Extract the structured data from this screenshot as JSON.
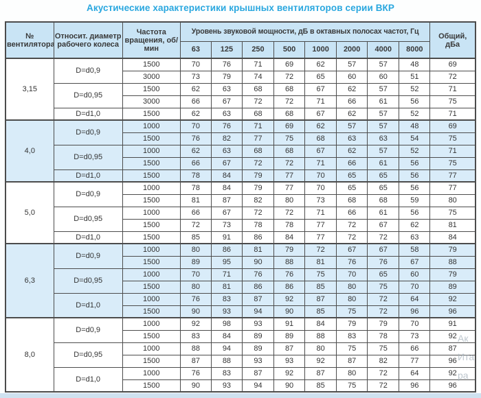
{
  "title": "Акустические характеристики крышных вентиляторов серии ВКР",
  "colors": {
    "accent": "#29a7df",
    "header_bg": "#c9e4f5",
    "shaded_row_bg": "#d9ecf9",
    "white_row_bg": "#ffffff",
    "border": "#4b4b4b",
    "page_bottom_strip": "#cfe2f0",
    "text": "#333333"
  },
  "table": {
    "headers": {
      "fan_no": "№ вентилятора",
      "rel_diameter": "Относит. диаметр рабочего колеса",
      "speed": "Частота вращения, об/мин",
      "spl_group": "Уровень звуковой мощности, дБ в октавных полосах частот, Гц",
      "octaves": [
        "63",
        "125",
        "250",
        "500",
        "1000",
        "2000",
        "4000",
        "8000"
      ],
      "total": "Общий, дБа"
    },
    "groups": [
      {
        "fan": "3,15",
        "shaded": false,
        "diameters": [
          {
            "label": "D=d0,9",
            "rows": [
              {
                "speed": "1500",
                "values": [
                  70,
                  76,
                  71,
                  69,
                  62,
                  57,
                  57,
                  48
                ],
                "total": 69
              },
              {
                "speed": "3000",
                "values": [
                  73,
                  79,
                  74,
                  72,
                  65,
                  60,
                  60,
                  51
                ],
                "total": 72
              }
            ]
          },
          {
            "label": "D=d0,95",
            "rows": [
              {
                "speed": "1500",
                "values": [
                  62,
                  63,
                  68,
                  68,
                  67,
                  62,
                  57,
                  52
                ],
                "total": 71
              },
              {
                "speed": "3000",
                "values": [
                  66,
                  67,
                  72,
                  72,
                  71,
                  66,
                  61,
                  56
                ],
                "total": 75
              }
            ]
          },
          {
            "label": "D=d1,0",
            "rows": [
              {
                "speed": "1500",
                "values": [
                  62,
                  63,
                  68,
                  68,
                  67,
                  62,
                  57,
                  52
                ],
                "total": 71
              }
            ]
          }
        ]
      },
      {
        "fan": "4,0",
        "shaded": true,
        "diameters": [
          {
            "label": "D=d0,9",
            "rows": [
              {
                "speed": "1000",
                "values": [
                  70,
                  76,
                  71,
                  69,
                  62,
                  57,
                  57,
                  48
                ],
                "total": 69
              },
              {
                "speed": "1500",
                "values": [
                  76,
                  82,
                  77,
                  75,
                  68,
                  63,
                  63,
                  54
                ],
                "total": 75
              }
            ]
          },
          {
            "label": "D=d0,95",
            "rows": [
              {
                "speed": "1000",
                "values": [
                  62,
                  63,
                  68,
                  68,
                  67,
                  62,
                  57,
                  52
                ],
                "total": 71
              },
              {
                "speed": "1500",
                "values": [
                  66,
                  67,
                  72,
                  72,
                  71,
                  66,
                  61,
                  56
                ],
                "total": 75
              }
            ]
          },
          {
            "label": "D=d1,0",
            "rows": [
              {
                "speed": "1500",
                "values": [
                  78,
                  84,
                  79,
                  77,
                  70,
                  65,
                  65,
                  56
                ],
                "total": 77
              }
            ]
          }
        ]
      },
      {
        "fan": "5,0",
        "shaded": false,
        "diameters": [
          {
            "label": "D=d0,9",
            "rows": [
              {
                "speed": "1000",
                "values": [
                  78,
                  84,
                  79,
                  77,
                  70,
                  65,
                  65,
                  56
                ],
                "total": 77
              },
              {
                "speed": "1500",
                "values": [
                  81,
                  87,
                  82,
                  80,
                  73,
                  68,
                  68,
                  59
                ],
                "total": 80
              }
            ]
          },
          {
            "label": "D=d0,95",
            "rows": [
              {
                "speed": "1000",
                "values": [
                  66,
                  67,
                  72,
                  72,
                  71,
                  66,
                  61,
                  56
                ],
                "total": 75
              },
              {
                "speed": "1500",
                "values": [
                  72,
                  73,
                  78,
                  78,
                  77,
                  72,
                  67,
                  62
                ],
                "total": 81
              }
            ]
          },
          {
            "label": "D=d1,0",
            "rows": [
              {
                "speed": "1500",
                "values": [
                  85,
                  91,
                  86,
                  84,
                  77,
                  72,
                  72,
                  63
                ],
                "total": 84
              }
            ]
          }
        ]
      },
      {
        "fan": "6,3",
        "shaded": true,
        "diameters": [
          {
            "label": "D=d0,9",
            "rows": [
              {
                "speed": "1000",
                "values": [
                  80,
                  86,
                  81,
                  79,
                  72,
                  67,
                  67,
                  58
                ],
                "total": 79
              },
              {
                "speed": "1500",
                "values": [
                  89,
                  95,
                  90,
                  88,
                  81,
                  76,
                  76,
                  67
                ],
                "total": 88
              }
            ]
          },
          {
            "label": "D=d0,95",
            "rows": [
              {
                "speed": "1000",
                "values": [
                  70,
                  71,
                  76,
                  76,
                  75,
                  70,
                  65,
                  60
                ],
                "total": 79
              },
              {
                "speed": "1500",
                "values": [
                  80,
                  81,
                  86,
                  86,
                  85,
                  80,
                  75,
                  70
                ],
                "total": 89
              }
            ]
          },
          {
            "label": "D=d1,0",
            "rows": [
              {
                "speed": "1000",
                "values": [
                  76,
                  83,
                  87,
                  92,
                  87,
                  80,
                  72,
                  64
                ],
                "total": 92
              },
              {
                "speed": "1500",
                "values": [
                  90,
                  93,
                  94,
                  90,
                  85,
                  75,
                  72,
                  96
                ],
                "total": 96
              }
            ]
          }
        ]
      },
      {
        "fan": "8,0",
        "shaded": false,
        "diameters": [
          {
            "label": "D=d0,9",
            "rows": [
              {
                "speed": "1000",
                "values": [
                  92,
                  98,
                  93,
                  91,
                  84,
                  79,
                  79,
                  70
                ],
                "total": 91
              },
              {
                "speed": "1500",
                "values": [
                  83,
                  84,
                  89,
                  89,
                  88,
                  83,
                  78,
                  73
                ],
                "total": 92
              }
            ]
          },
          {
            "label": "D=d0,95",
            "rows": [
              {
                "speed": "1000",
                "values": [
                  88,
                  94,
                  89,
                  87,
                  80,
                  75,
                  75,
                  66
                ],
                "total": 87
              },
              {
                "speed": "1500",
                "values": [
                  87,
                  88,
                  93,
                  93,
                  92,
                  87,
                  82,
                  77
                ],
                "total": 96
              }
            ]
          },
          {
            "label": "D=d1,0",
            "rows": [
              {
                "speed": "1000",
                "values": [
                  76,
                  83,
                  87,
                  92,
                  87,
                  80,
                  72,
                  64
                ],
                "total": 92
              },
              {
                "speed": "1500",
                "values": [
                  90,
                  93,
                  94,
                  90,
                  85,
                  75,
                  72,
                  96
                ],
                "total": 96
              }
            ]
          }
        ]
      }
    ]
  },
  "watermark": {
    "lines": [
      "Ак",
      "Ита",
      "ра"
    ]
  }
}
